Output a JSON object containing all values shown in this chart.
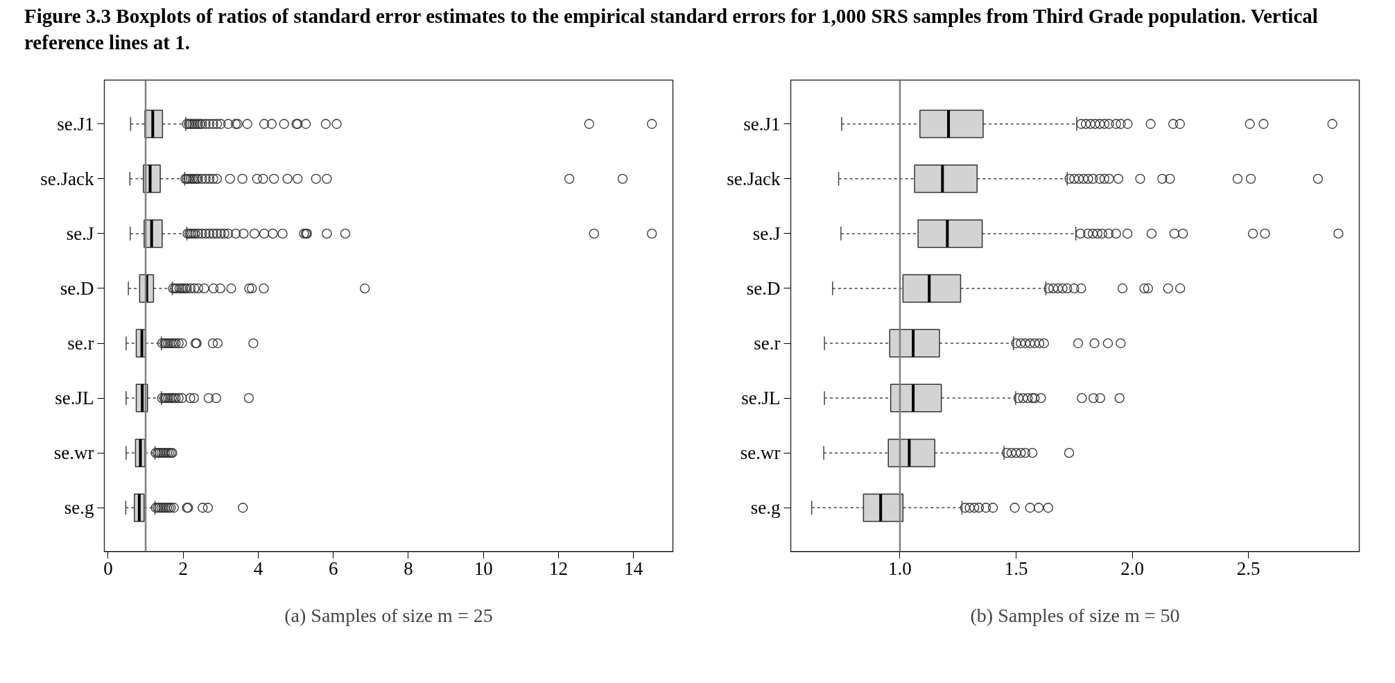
{
  "chart_data": [
    {
      "type": "box",
      "title": "Figure 3.3   Boxplots of ratios of standard error estimates to the empirical standard errors for 1,000 SRS samples from Third Grade population. Vertical reference lines at 1.",
      "xlabel": "(a) Samples of size m = 25",
      "categories": [
        "se.J1",
        "se.Jack",
        "se.J",
        "se.D",
        "se.r",
        "se.JL",
        "se.wr",
        "se.g"
      ],
      "orientation": "horizontal",
      "color": "#d3d3d3",
      "xlim": [
        -0.1,
        15.05
      ],
      "xticks": [
        0,
        2,
        4,
        6,
        8,
        10,
        12,
        14
      ],
      "grid": false,
      "ref_lines": [
        {
          "axis": "x",
          "value": 1,
          "color": "#808080"
        }
      ],
      "boxes": [
        {
          "low": 0.6,
          "q1": 0.98,
          "median": 1.19,
          "q3": 1.45,
          "high": 2.07,
          "outliers": [
            2.1,
            2.15,
            2.2,
            2.25,
            2.3,
            2.35,
            2.4,
            2.45,
            2.5,
            2.6,
            2.7,
            2.8,
            2.9,
            3.0,
            3.2,
            3.4,
            3.45,
            3.71,
            4.16,
            4.36,
            4.69,
            5.02,
            5.05,
            5.27,
            5.8,
            6.09,
            12.82,
            14.49
          ]
        },
        {
          "low": 0.58,
          "q1": 0.94,
          "median": 1.12,
          "q3": 1.39,
          "high": 2.04,
          "outliers": [
            2.06,
            2.1,
            2.15,
            2.2,
            2.25,
            2.3,
            2.35,
            2.4,
            2.5,
            2.6,
            2.7,
            2.8,
            2.9,
            3.25,
            3.58,
            3.97,
            4.13,
            4.42,
            4.78,
            5.05,
            5.54,
            5.83,
            12.29,
            13.71
          ]
        },
        {
          "low": 0.59,
          "q1": 0.96,
          "median": 1.16,
          "q3": 1.44,
          "high": 2.1,
          "outliers": [
            2.12,
            2.17,
            2.22,
            2.27,
            2.32,
            2.4,
            2.5,
            2.6,
            2.7,
            2.8,
            2.9,
            3.0,
            3.1,
            3.2,
            3.4,
            3.61,
            3.9,
            4.16,
            4.39,
            4.65,
            5.22,
            5.27,
            5.3,
            5.83,
            6.32,
            12.95,
            14.49
          ]
        },
        {
          "low": 0.54,
          "q1": 0.84,
          "median": 1.03,
          "q3": 1.21,
          "high": 1.71,
          "outliers": [
            1.73,
            1.78,
            1.83,
            1.9,
            1.95,
            2.0,
            2.05,
            2.1,
            2.2,
            2.3,
            2.4,
            2.56,
            2.81,
            2.99,
            3.28,
            3.76,
            3.83,
            4.15,
            6.84
          ]
        },
        {
          "low": 0.48,
          "q1": 0.75,
          "median": 0.9,
          "q3": 0.99,
          "high": 1.42,
          "outliers": [
            1.44,
            1.5,
            1.55,
            1.6,
            1.65,
            1.7,
            1.75,
            1.8,
            1.88,
            1.97,
            2.33,
            2.36,
            2.79,
            2.92,
            3.87
          ]
        },
        {
          "low": 0.48,
          "q1": 0.75,
          "median": 0.91,
          "q3": 1.05,
          "high": 1.42,
          "outliers": [
            1.44,
            1.5,
            1.55,
            1.6,
            1.65,
            1.7,
            1.75,
            1.8,
            1.88,
            1.97,
            2.19,
            2.29,
            2.68,
            2.88,
            3.75
          ]
        },
        {
          "low": 0.48,
          "q1": 0.73,
          "median": 0.86,
          "q3": 0.98,
          "high": 1.25,
          "outliers": [
            1.27,
            1.32,
            1.37,
            1.42,
            1.47,
            1.52,
            1.57,
            1.62,
            1.67,
            1.71
          ]
        },
        {
          "low": 0.47,
          "q1": 0.7,
          "median": 0.83,
          "q3": 0.96,
          "high": 1.25,
          "outliers": [
            1.27,
            1.32,
            1.37,
            1.42,
            1.47,
            1.52,
            1.57,
            1.62,
            1.67,
            1.75,
            2.1,
            2.13,
            2.52,
            2.66,
            3.59
          ]
        }
      ]
    },
    {
      "type": "box",
      "xlabel": "(b) Samples of size m = 50",
      "categories": [
        "se.J1",
        "se.Jack",
        "se.J",
        "se.D",
        "se.r",
        "se.JL",
        "se.wr",
        "se.g"
      ],
      "orientation": "horizontal",
      "color": "#d3d3d3",
      "xlim": [
        0.53,
        2.977
      ],
      "xticks": [
        {
          "value": 1,
          "label": "1.0"
        },
        {
          "value": 1.5,
          "label": "1.5"
        },
        {
          "value": 2,
          "label": "2.0"
        },
        {
          "value": 2.5,
          "label": "2.5"
        }
      ],
      "grid": false,
      "ref_lines": [
        {
          "axis": "x",
          "value": 1,
          "color": "#808080"
        }
      ],
      "boxes": [
        {
          "low": 0.749,
          "q1": 1.086,
          "median": 1.209,
          "q3": 1.358,
          "high": 1.761,
          "outliers": [
            1.78,
            1.8,
            1.82,
            1.84,
            1.86,
            1.88,
            1.9,
            1.93,
            1.95,
            1.98,
            2.079,
            2.176,
            2.205,
            2.506,
            2.565,
            2.861
          ]
        },
        {
          "low": 0.736,
          "q1": 1.063,
          "median": 1.183,
          "q3": 1.332,
          "high": 1.72,
          "outliers": [
            1.73,
            1.75,
            1.77,
            1.79,
            1.81,
            1.83,
            1.86,
            1.88,
            1.9,
            1.94,
            2.034,
            2.129,
            2.162,
            2.453,
            2.51,
            2.799
          ]
        },
        {
          "low": 0.746,
          "q1": 1.078,
          "median": 1.204,
          "q3": 1.354,
          "high": 1.757,
          "outliers": [
            1.777,
            1.809,
            1.83,
            1.85,
            1.87,
            1.898,
            1.93,
            1.979,
            2.083,
            2.181,
            2.218,
            2.519,
            2.571,
            2.887
          ]
        },
        {
          "low": 0.71,
          "q1": 1.013,
          "median": 1.126,
          "q3": 1.261,
          "high": 1.628,
          "outliers": [
            1.64,
            1.66,
            1.68,
            1.7,
            1.72,
            1.75,
            1.78,
            1.958,
            2.052,
            2.068,
            2.154,
            2.206
          ]
        },
        {
          "low": 0.675,
          "q1": 0.956,
          "median": 1.057,
          "q3": 1.17,
          "high": 1.489,
          "outliers": [
            1.5,
            1.52,
            1.54,
            1.56,
            1.58,
            1.6,
            1.62,
            1.767,
            1.837,
            1.895,
            1.95
          ]
        },
        {
          "low": 0.675,
          "q1": 0.96,
          "median": 1.057,
          "q3": 1.178,
          "high": 1.498,
          "outliers": [
            1.51,
            1.53,
            1.55,
            1.57,
            1.58,
            1.607,
            1.783,
            1.833,
            1.862,
            1.945
          ]
        },
        {
          "low": 0.672,
          "q1": 0.95,
          "median": 1.04,
          "q3": 1.15,
          "high": 1.448,
          "outliers": [
            1.46,
            1.48,
            1.5,
            1.52,
            1.54,
            1.57,
            1.728
          ]
        },
        {
          "low": 0.62,
          "q1": 0.843,
          "median": 0.917,
          "q3": 1.013,
          "high": 1.267,
          "outliers": [
            1.28,
            1.3,
            1.32,
            1.34,
            1.37,
            1.4,
            1.494,
            1.56,
            1.597,
            1.638
          ]
        }
      ]
    }
  ]
}
